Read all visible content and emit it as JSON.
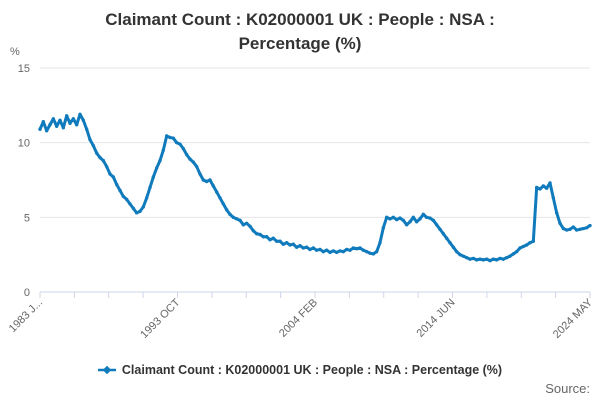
{
  "title": "Claimant Count : K02000001 UK : People : NSA : Percentage (%)",
  "y_unit_label": "%",
  "legend": {
    "series_label": "Claimant Count : K02000001 UK : People : NSA : Percentage (%)"
  },
  "source_label": "Source:",
  "colors": {
    "series_line": "#107bbc",
    "gridline": "#e6e6e6",
    "axis_line": "#ccd6eb",
    "tick_label": "#666666",
    "title_text": "#333333"
  },
  "chart_data": {
    "type": "line",
    "title": "Claimant Count : K02000001 UK : People : NSA : Percentage (%)",
    "ylabel": "%",
    "ylim": [
      0,
      15
    ],
    "y_ticks": [
      0,
      5,
      10,
      15
    ],
    "grid": "horizontal-only",
    "legend_position": "bottom",
    "x_tick_count": 17,
    "x_labeled_tick_indices": [
      0,
      4,
      8,
      12,
      16
    ],
    "x_tick_labels": [
      "1983 J...",
      "1993 OCT",
      "2004 FEB",
      "2014 JUN",
      "2024 MAY"
    ],
    "x_label_rotation_deg": -45,
    "points_per_year": 4,
    "series": [
      {
        "name": "Claimant Count : K02000001 UK : People : NSA : Percentage (%)",
        "color": "#107bbc",
        "values": [
          10.9,
          11.4,
          10.8,
          11.2,
          11.6,
          11.1,
          11.5,
          11.0,
          11.8,
          11.3,
          11.6,
          11.2,
          11.9,
          11.5,
          10.9,
          10.2,
          9.8,
          9.3,
          9.0,
          8.8,
          8.4,
          7.9,
          7.7,
          7.2,
          6.8,
          6.4,
          6.2,
          5.9,
          5.6,
          5.3,
          5.4,
          5.7,
          6.3,
          7.0,
          7.7,
          8.3,
          8.8,
          9.5,
          10.45,
          10.35,
          10.3,
          10.0,
          9.9,
          9.6,
          9.2,
          8.9,
          8.7,
          8.4,
          7.9,
          7.5,
          7.4,
          7.5,
          7.1,
          6.7,
          6.3,
          5.9,
          5.5,
          5.2,
          5.0,
          4.9,
          4.8,
          4.5,
          4.6,
          4.4,
          4.1,
          3.9,
          3.85,
          3.7,
          3.7,
          3.5,
          3.6,
          3.4,
          3.4,
          3.2,
          3.3,
          3.15,
          3.2,
          3.0,
          3.1,
          2.95,
          3.0,
          2.85,
          2.95,
          2.8,
          2.85,
          2.7,
          2.8,
          2.65,
          2.75,
          2.65,
          2.75,
          2.7,
          2.85,
          2.8,
          2.95,
          2.9,
          2.95,
          2.8,
          2.7,
          2.6,
          2.55,
          2.7,
          3.3,
          4.3,
          5.0,
          4.9,
          5.0,
          4.85,
          4.95,
          4.8,
          4.5,
          4.7,
          5.0,
          4.7,
          4.9,
          5.2,
          5.0,
          4.95,
          4.8,
          4.5,
          4.2,
          3.9,
          3.6,
          3.3,
          3.0,
          2.7,
          2.5,
          2.4,
          2.3,
          2.2,
          2.25,
          2.15,
          2.2,
          2.15,
          2.2,
          2.1,
          2.2,
          2.15,
          2.25,
          2.2,
          2.3,
          2.4,
          2.55,
          2.7,
          2.95,
          3.05,
          3.15,
          3.3,
          3.4,
          7.0,
          6.9,
          7.1,
          6.95,
          7.3,
          6.3,
          5.3,
          4.6,
          4.25,
          4.15,
          4.2,
          4.35,
          4.15,
          4.2,
          4.25,
          4.3,
          4.45
        ]
      }
    ]
  }
}
